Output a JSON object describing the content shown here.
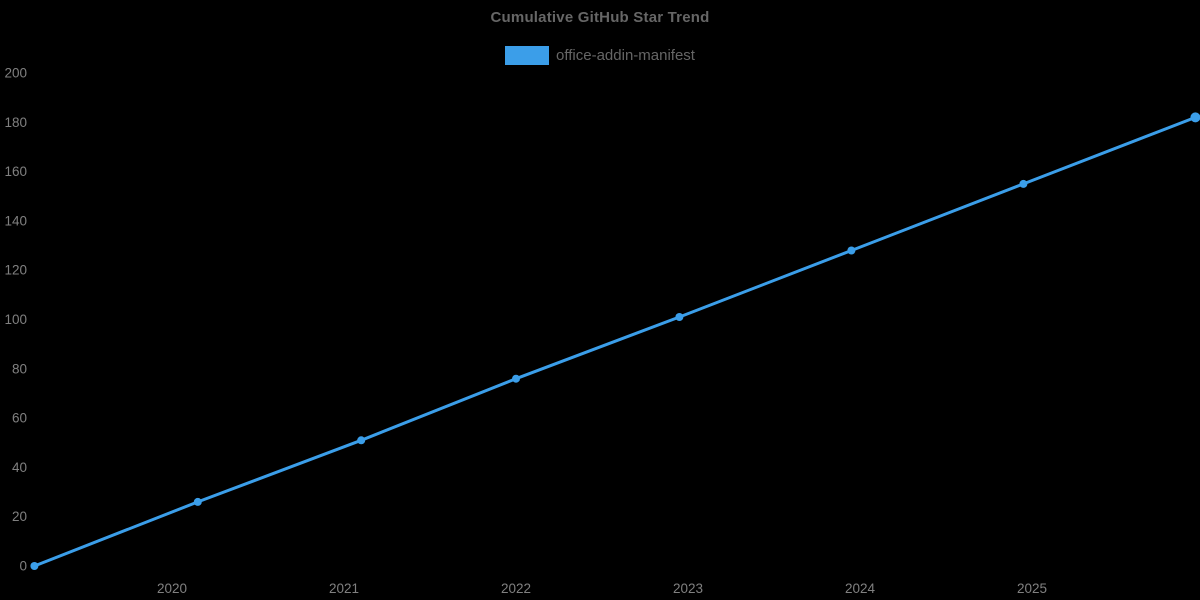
{
  "page": {
    "background": "#000000"
  },
  "header": {
    "title": "Cumulative GitHub Star Trend",
    "title_color": "#666666"
  },
  "legend": {
    "label": "office-addin-manifest",
    "swatch_color": "#3b9ee9",
    "text_color": "#666666",
    "position": "top"
  },
  "chart_data": {
    "type": "line",
    "title": "Cumulative GitHub Star Trend",
    "xlabel": "",
    "ylabel": "",
    "grid": false,
    "background": "#000000",
    "legend_position": "top",
    "x_ticks": [
      2020,
      2021,
      2022,
      2023,
      2024,
      2025
    ],
    "y_ticks": [
      0,
      20,
      40,
      60,
      80,
      100,
      120,
      140,
      160,
      180,
      200
    ],
    "ylim": [
      0,
      200
    ],
    "xlim": [
      2019.2,
      2025.95
    ],
    "tick_color": "#808080",
    "series": [
      {
        "name": "office-addin-manifest",
        "color": "#3b9ee9",
        "points": [
          {
            "x": 2019.2,
            "y": 0
          },
          {
            "x": 2020.15,
            "y": 26
          },
          {
            "x": 2021.1,
            "y": 51
          },
          {
            "x": 2022.0,
            "y": 76
          },
          {
            "x": 2022.95,
            "y": 101
          },
          {
            "x": 2023.95,
            "y": 128
          },
          {
            "x": 2024.95,
            "y": 155
          },
          {
            "x": 2025.95,
            "y": 182
          }
        ]
      }
    ]
  }
}
